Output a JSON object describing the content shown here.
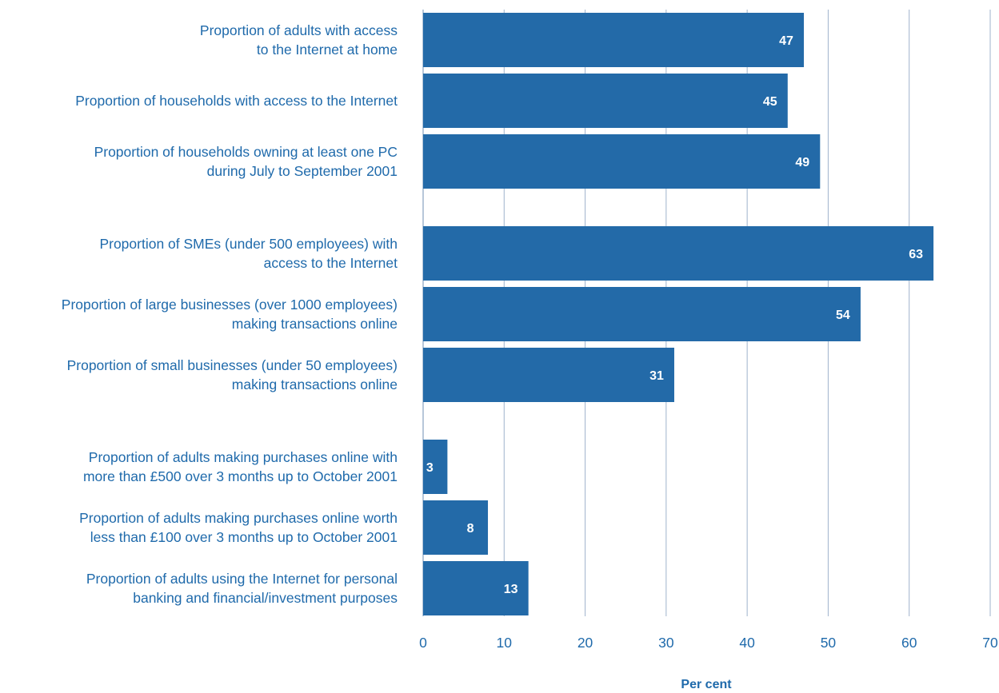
{
  "chart_data": {
    "type": "bar",
    "orientation": "horizontal",
    "categories": [
      [
        "Proportion of adults with access",
        "to the Internet at home"
      ],
      [
        "Proportion of households with access to the Internet"
      ],
      [
        "Proportion of households owning at least one PC",
        "during July to September 2001"
      ],
      [
        "Proportion of SMEs (under 500 employees) with",
        "access to the Internet"
      ],
      [
        "Proportion of large businesses (over 1000 employees)",
        "making transactions online"
      ],
      [
        "Proportion of small businesses (under 50 employees)",
        "making transactions online"
      ],
      [
        "Proportion of adults making purchases online with",
        "more than £500 over 3 months up to October 2001"
      ],
      [
        "Proportion of adults making purchases online worth",
        "less than £100 over 3 months up to October 2001"
      ],
      [
        "Proportion of adults using the Internet for personal",
        "banking and financial/investment purposes"
      ]
    ],
    "values": [
      47,
      45,
      49,
      63,
      54,
      31,
      3,
      8,
      13
    ],
    "data_labels": [
      "47",
      "45",
      "49",
      "63",
      "54",
      "31",
      "3",
      "8",
      "13"
    ],
    "xlabel": "Per cent",
    "xlim": [
      0,
      70
    ],
    "xticks": [
      "0",
      "10",
      "20",
      "30",
      "40",
      "50",
      "60",
      "70"
    ],
    "grid": true,
    "colors": {
      "bar": "#236aa8",
      "grid": "#9fb3cc",
      "text": "#1f6aab",
      "value_text": "#ffffff"
    }
  }
}
